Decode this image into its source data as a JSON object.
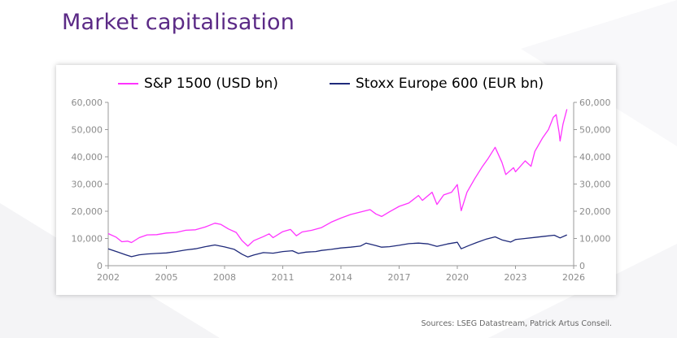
{
  "slide": {
    "title": "Market capitalisation",
    "source": "Sources: LSEG Datastream, Patrick Artus Conseil."
  },
  "chart_data": {
    "type": "line",
    "title": "",
    "xlabel": "",
    "ylabel": "",
    "xlim": [
      2002,
      2026
    ],
    "ylim": [
      0,
      60000
    ],
    "x_ticks": [
      "2002",
      "2005",
      "2008",
      "2011",
      "2014",
      "2017",
      "2020",
      "2023",
      "2026"
    ],
    "y_ticks_left": [
      "0",
      "10,000",
      "20,000",
      "30,000",
      "40,000",
      "50,000",
      "60,000"
    ],
    "y_ticks_right": [
      "0",
      "10,000",
      "20,000",
      "30,000",
      "40,000",
      "50,000",
      "60,000"
    ],
    "grid": false,
    "legend_position": "top",
    "series": [
      {
        "name": "S&P 1500 (USD bn)",
        "color": "#ff33ff",
        "axis": "left",
        "points": [
          [
            2002.0,
            11800
          ],
          [
            2002.4,
            10500
          ],
          [
            2002.7,
            8800
          ],
          [
            2003.0,
            9000
          ],
          [
            2003.2,
            8500
          ],
          [
            2003.6,
            10300
          ],
          [
            2004.0,
            11300
          ],
          [
            2004.5,
            11400
          ],
          [
            2005.0,
            12000
          ],
          [
            2005.5,
            12200
          ],
          [
            2006.0,
            13000
          ],
          [
            2006.5,
            13200
          ],
          [
            2007.0,
            14200
          ],
          [
            2007.5,
            15600
          ],
          [
            2007.8,
            15200
          ],
          [
            2008.2,
            13500
          ],
          [
            2008.6,
            12200
          ],
          [
            2008.9,
            9200
          ],
          [
            2009.2,
            7200
          ],
          [
            2009.5,
            9200
          ],
          [
            2010.0,
            10700
          ],
          [
            2010.3,
            11700
          ],
          [
            2010.5,
            10300
          ],
          [
            2011.0,
            12500
          ],
          [
            2011.4,
            13300
          ],
          [
            2011.7,
            11000
          ],
          [
            2012.0,
            12400
          ],
          [
            2012.5,
            13000
          ],
          [
            2013.0,
            14000
          ],
          [
            2013.5,
            16000
          ],
          [
            2014.0,
            17500
          ],
          [
            2014.5,
            18800
          ],
          [
            2015.0,
            19700
          ],
          [
            2015.5,
            20600
          ],
          [
            2015.8,
            19000
          ],
          [
            2016.1,
            18100
          ],
          [
            2016.5,
            19800
          ],
          [
            2017.0,
            21800
          ],
          [
            2017.5,
            23000
          ],
          [
            2018.0,
            25800
          ],
          [
            2018.2,
            24000
          ],
          [
            2018.7,
            27000
          ],
          [
            2018.95,
            22500
          ],
          [
            2019.3,
            26000
          ],
          [
            2019.7,
            27000
          ],
          [
            2020.0,
            29800
          ],
          [
            2020.2,
            20200
          ],
          [
            2020.5,
            27000
          ],
          [
            2020.9,
            32000
          ],
          [
            2021.3,
            36500
          ],
          [
            2021.6,
            39500
          ],
          [
            2021.95,
            43500
          ],
          [
            2022.3,
            38000
          ],
          [
            2022.5,
            33500
          ],
          [
            2022.9,
            36000
          ],
          [
            2023.0,
            34500
          ],
          [
            2023.5,
            38500
          ],
          [
            2023.8,
            36500
          ],
          [
            2024.0,
            42000
          ],
          [
            2024.4,
            47000
          ],
          [
            2024.7,
            50000
          ],
          [
            2024.95,
            54500
          ],
          [
            2025.1,
            55500
          ],
          [
            2025.25,
            49000
          ],
          [
            2025.3,
            45800
          ],
          [
            2025.45,
            52000
          ],
          [
            2025.65,
            57500
          ]
        ]
      },
      {
        "name": "Stoxx Europe 600 (EUR bn)",
        "color": "#1f2a7a",
        "axis": "right",
        "points": [
          [
            2002.0,
            6200
          ],
          [
            2002.5,
            5000
          ],
          [
            2002.9,
            4000
          ],
          [
            2003.2,
            3300
          ],
          [
            2003.6,
            4000
          ],
          [
            2004.0,
            4300
          ],
          [
            2004.5,
            4500
          ],
          [
            2005.0,
            4700
          ],
          [
            2005.5,
            5200
          ],
          [
            2006.0,
            5800
          ],
          [
            2006.5,
            6200
          ],
          [
            2007.0,
            7000
          ],
          [
            2007.5,
            7600
          ],
          [
            2008.0,
            6900
          ],
          [
            2008.5,
            6000
          ],
          [
            2008.9,
            4200
          ],
          [
            2009.2,
            3200
          ],
          [
            2009.5,
            3900
          ],
          [
            2010.0,
            4800
          ],
          [
            2010.5,
            4600
          ],
          [
            2011.0,
            5200
          ],
          [
            2011.5,
            5500
          ],
          [
            2011.8,
            4500
          ],
          [
            2012.2,
            5000
          ],
          [
            2012.7,
            5200
          ],
          [
            2013.0,
            5600
          ],
          [
            2013.5,
            6000
          ],
          [
            2014.0,
            6500
          ],
          [
            2014.5,
            6800
          ],
          [
            2015.0,
            7200
          ],
          [
            2015.3,
            8300
          ],
          [
            2015.8,
            7400
          ],
          [
            2016.1,
            6800
          ],
          [
            2016.5,
            7000
          ],
          [
            2017.0,
            7500
          ],
          [
            2017.5,
            8100
          ],
          [
            2018.0,
            8300
          ],
          [
            2018.5,
            8000
          ],
          [
            2018.95,
            7100
          ],
          [
            2019.5,
            8000
          ],
          [
            2020.0,
            8600
          ],
          [
            2020.2,
            6200
          ],
          [
            2020.6,
            7400
          ],
          [
            2021.0,
            8500
          ],
          [
            2021.5,
            9800
          ],
          [
            2021.95,
            10600
          ],
          [
            2022.3,
            9500
          ],
          [
            2022.75,
            8700
          ],
          [
            2023.0,
            9600
          ],
          [
            2023.5,
            10000
          ],
          [
            2024.0,
            10400
          ],
          [
            2024.5,
            10800
          ],
          [
            2025.0,
            11200
          ],
          [
            2025.3,
            10200
          ],
          [
            2025.65,
            11300
          ]
        ]
      }
    ]
  }
}
